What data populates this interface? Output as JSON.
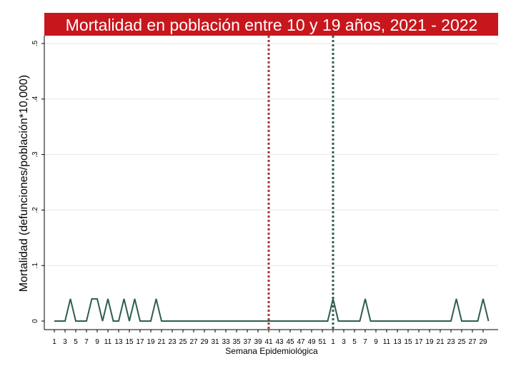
{
  "chart_data": {
    "type": "line",
    "title": "Mortalidad en población entre 10 y 19 años, 2021 - 2022",
    "xlabel": "Semana Epidemiológica",
    "ylabel": "Mortalidad (defunciones/población*10,000)",
    "ylim": [
      0,
      0.5
    ],
    "y_ticks": [
      {
        "value": 0,
        "label": "0"
      },
      {
        "value": 0.1,
        "label": ".1"
      },
      {
        "value": 0.2,
        "label": ".2"
      },
      {
        "value": 0.3,
        "label": ".3"
      },
      {
        "value": 0.4,
        "label": ".4"
      },
      {
        "value": 0.5,
        "label": ".5"
      }
    ],
    "x_ticks": [
      {
        "index": 0,
        "label": "1"
      },
      {
        "index": 2,
        "label": "3"
      },
      {
        "index": 4,
        "label": "5"
      },
      {
        "index": 6,
        "label": "7"
      },
      {
        "index": 8,
        "label": "9"
      },
      {
        "index": 10,
        "label": "11"
      },
      {
        "index": 12,
        "label": "13"
      },
      {
        "index": 14,
        "label": "15"
      },
      {
        "index": 16,
        "label": "17"
      },
      {
        "index": 18,
        "label": "19"
      },
      {
        "index": 20,
        "label": "21"
      },
      {
        "index": 22,
        "label": "23"
      },
      {
        "index": 24,
        "label": "25"
      },
      {
        "index": 26,
        "label": "27"
      },
      {
        "index": 28,
        "label": "29"
      },
      {
        "index": 30,
        "label": "31"
      },
      {
        "index": 32,
        "label": "33"
      },
      {
        "index": 34,
        "label": "35"
      },
      {
        "index": 36,
        "label": "37"
      },
      {
        "index": 38,
        "label": "39"
      },
      {
        "index": 40,
        "label": "41"
      },
      {
        "index": 42,
        "label": "43"
      },
      {
        "index": 44,
        "label": "45"
      },
      {
        "index": 46,
        "label": "47"
      },
      {
        "index": 48,
        "label": "49"
      },
      {
        "index": 50,
        "label": "51"
      },
      {
        "index": 52,
        "label": "1"
      },
      {
        "index": 54,
        "label": "3"
      },
      {
        "index": 56,
        "label": "5"
      },
      {
        "index": 58,
        "label": "7"
      },
      {
        "index": 60,
        "label": "9"
      },
      {
        "index": 62,
        "label": "11"
      },
      {
        "index": 64,
        "label": "13"
      },
      {
        "index": 66,
        "label": "15"
      },
      {
        "index": 68,
        "label": "17"
      },
      {
        "index": 70,
        "label": "19"
      },
      {
        "index": 72,
        "label": "21"
      },
      {
        "index": 74,
        "label": "23"
      },
      {
        "index": 76,
        "label": "25"
      },
      {
        "index": 78,
        "label": "27"
      },
      {
        "index": 80,
        "label": "29"
      }
    ],
    "series": [
      {
        "color": "#2e5e4e",
        "values": [
          0,
          0,
          0,
          0.04,
          0,
          0,
          0,
          0.04,
          0.04,
          0,
          0.04,
          0,
          0,
          0.04,
          0,
          0.04,
          0,
          0,
          0,
          0.04,
          0,
          0,
          0,
          0,
          0,
          0,
          0,
          0,
          0,
          0,
          0,
          0,
          0,
          0,
          0,
          0,
          0,
          0,
          0,
          0,
          0,
          0,
          0,
          0,
          0,
          0,
          0,
          0,
          0,
          0,
          0,
          0,
          0.04,
          0,
          0,
          0,
          0,
          0,
          0.04,
          0,
          0,
          0,
          0,
          0,
          0,
          0,
          0,
          0,
          0,
          0,
          0,
          0,
          0,
          0,
          0,
          0.04,
          0,
          0,
          0,
          0,
          0.04,
          0
        ]
      }
    ],
    "reference_lines": [
      {
        "index": 40,
        "color": "#a2373f",
        "style": "dotted"
      },
      {
        "index": 52,
        "color": "#2e5e4e",
        "style": "dotted"
      }
    ],
    "grid": true,
    "colors": {
      "title_background": "#c8161d",
      "grid": "#e6e6e6"
    }
  }
}
